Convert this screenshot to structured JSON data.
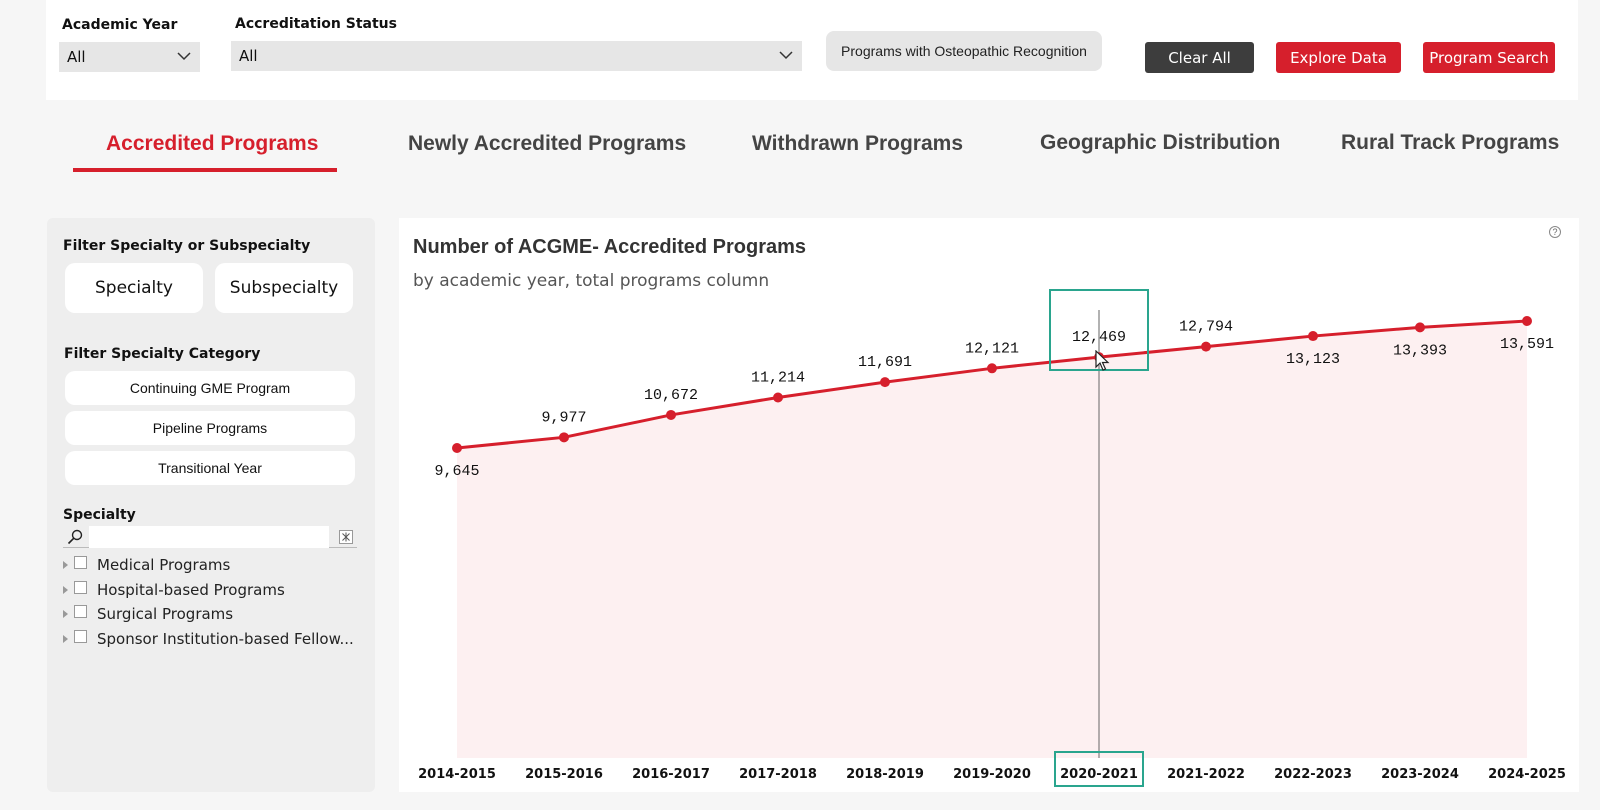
{
  "filters": {
    "academic_year_label": "Academic Year",
    "academic_year_value": "All",
    "accreditation_status_label": "Accreditation Status",
    "accreditation_status_value": "All",
    "osteopathic_button": "Programs with Osteopathic Recognition",
    "clear_all": "Clear All",
    "explore_data": "Explore Data",
    "program_search": "Program Search"
  },
  "tabs": [
    {
      "label": "Accredited Programs",
      "active": true
    },
    {
      "label": "Newly Accredited Programs",
      "active": false
    },
    {
      "label": "Withdrawn Programs",
      "active": false
    },
    {
      "label": "Geographic Distribution",
      "active": false
    },
    {
      "label": "Rural Track Programs",
      "active": false
    }
  ],
  "left_panel": {
    "filter_specialty_label": "Filter Specialty or Subspecialty",
    "specialty_button": "Specialty",
    "subspecialty_button": "Subspecialty",
    "filter_category_label": "Filter Specialty Category",
    "categories": [
      "Continuing GME Program",
      "Pipeline Programs",
      "Transitional Year"
    ],
    "specialty_label": "Specialty",
    "search_placeholder": "",
    "tree_items": [
      "Medical Programs",
      "Hospital-based Programs",
      "Surgical Programs",
      "Sponsor Institution-based Fellow..."
    ]
  },
  "chart": {
    "title": "Number of ACGME- Accredited Programs",
    "subtitle": "by academic year, total programs column",
    "highlighted_category": "2020-2021",
    "line_color": "#d61f2c",
    "area_color": "#fdf0f1",
    "highlight_color": "#2aa58e"
  },
  "chart_data": {
    "type": "area",
    "title": "Number of ACGME- Accredited Programs",
    "subtitle": "by academic year, total programs column",
    "categories": [
      "2014-2015",
      "2015-2016",
      "2016-2017",
      "2017-2018",
      "2018-2019",
      "2019-2020",
      "2020-2021",
      "2021-2022",
      "2022-2023",
      "2023-2024",
      "2024-2025"
    ],
    "values": [
      9645,
      9977,
      10672,
      11214,
      11691,
      12121,
      12469,
      12794,
      13123,
      13393,
      13591
    ],
    "labels": [
      "9,645",
      "9,977",
      "10,672",
      "11,214",
      "11,691",
      "12,121",
      "12,469",
      "12,794",
      "13,123",
      "13,393",
      "13,591"
    ],
    "grid": false,
    "legend": "none"
  }
}
